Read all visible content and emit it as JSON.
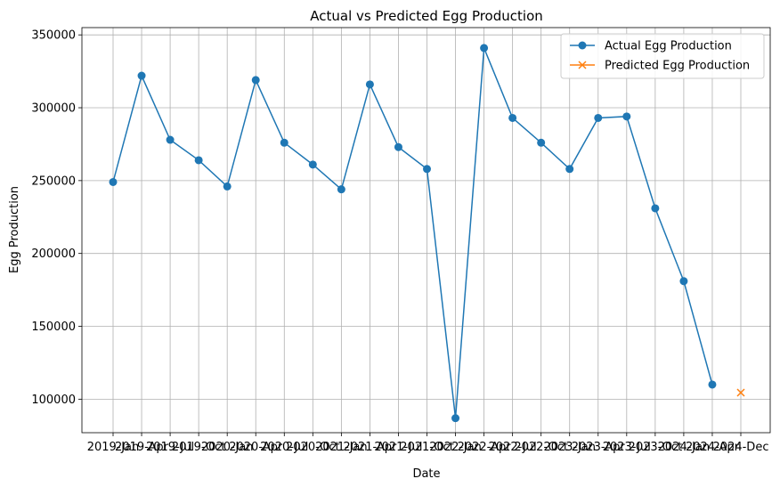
{
  "chart_data": {
    "type": "line",
    "title": "Actual vs Predicted Egg Production",
    "xlabel": "Date",
    "ylabel": "Egg Production",
    "ylim": [
      77000,
      355000
    ],
    "yticks": [
      100000,
      150000,
      200000,
      250000,
      300000,
      350000
    ],
    "grid": true,
    "legend_position": "top-right",
    "categories": [
      "2019-Jan",
      "2019-Apr",
      "2019-Jul",
      "2019-Oct",
      "2020-Jan",
      "2020-Apr",
      "2020-Jul",
      "2020-Oct",
      "2021-Jan",
      "2021-Apr",
      "2021-Jul",
      "2021-Oct",
      "2022-Jan",
      "2022-Apr",
      "2022-Jul",
      "2022-Oct",
      "2023-Jan",
      "2023-Apr",
      "2023-Jul",
      "2023-Oct",
      "2024-Jan",
      "2024-Apr",
      "2024-Dec"
    ],
    "series": [
      {
        "name": "Actual Egg Production",
        "color": "#1f77b4",
        "marker": "circle",
        "values": [
          249000,
          322000,
          278000,
          264000,
          246000,
          319000,
          276000,
          261000,
          244000,
          316000,
          273000,
          258000,
          87000,
          341000,
          293000,
          276000,
          258000,
          293000,
          294000,
          231000,
          181000,
          110000,
          null
        ]
      },
      {
        "name": "Predicted Egg Production",
        "color": "#ff7f0e",
        "marker": "x",
        "values": [
          null,
          null,
          null,
          null,
          null,
          null,
          null,
          null,
          null,
          null,
          null,
          null,
          null,
          null,
          null,
          null,
          null,
          null,
          null,
          null,
          null,
          null,
          104500
        ]
      }
    ]
  }
}
